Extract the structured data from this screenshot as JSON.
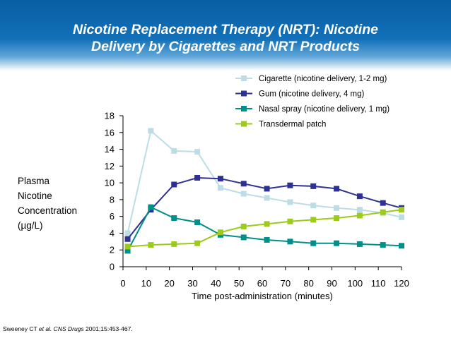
{
  "title_line1": "Nicotine Replacement Therapy (NRT): Nicotine",
  "title_line2": "Delivery by Cigarettes and NRT Products",
  "ylabel_lines": [
    "Plasma",
    "Nicotine",
    "Concentration",
    "(µg/L)"
  ],
  "citation": {
    "authors": "Sweeney CT ",
    "etal": "et al.",
    "journal": " CNS Drugs",
    "rest": " 2001;15:453-467."
  },
  "chart_data": {
    "type": "line",
    "title": "Nicotine Replacement Therapy (NRT): Nicotine Delivery by Cigarettes and NRT Products",
    "xlabel": "Time post-administration (minutes)",
    "ylabel": "Plasma Nicotine Concentration (µg/L)",
    "xlim": [
      0,
      120
    ],
    "ylim": [
      0,
      18
    ],
    "xticks": [
      0,
      10,
      20,
      30,
      40,
      50,
      60,
      70,
      80,
      90,
      100,
      110,
      120
    ],
    "yticks": [
      0,
      2,
      4,
      6,
      8,
      10,
      12,
      14,
      16,
      18
    ],
    "grid": false,
    "legend_position": "top-right",
    "series": [
      {
        "name": "Cigarette (nicotine delivery, 1-2 mg)",
        "color": "#bcdde6",
        "marker": "square",
        "x": [
          2,
          12,
          22,
          32,
          42,
          52,
          62,
          72,
          82,
          92,
          102,
          112,
          120
        ],
        "y": [
          4.0,
          16.2,
          13.8,
          13.7,
          9.4,
          8.7,
          8.2,
          7.7,
          7.3,
          7.0,
          6.8,
          6.4,
          5.9
        ]
      },
      {
        "name": "Gum (nicotine delivery, 4 mg)",
        "color": "#2e3192",
        "marker": "square",
        "x": [
          2,
          12,
          22,
          32,
          42,
          52,
          62,
          72,
          82,
          92,
          102,
          112,
          120
        ],
        "y": [
          3.3,
          6.8,
          9.8,
          10.6,
          10.5,
          9.9,
          9.3,
          9.7,
          9.6,
          9.3,
          8.4,
          7.6,
          7.0
        ]
      },
      {
        "name": "Nasal spray (nicotine delivery, 1 mg)",
        "color": "#00908a",
        "marker": "square",
        "x": [
          2,
          12,
          22,
          32,
          42,
          52,
          62,
          72,
          82,
          92,
          102,
          112,
          120
        ],
        "y": [
          1.9,
          7.1,
          5.8,
          5.3,
          3.8,
          3.5,
          3.2,
          3.0,
          2.8,
          2.8,
          2.7,
          2.6,
          2.5
        ]
      },
      {
        "name": "Transdermal patch",
        "color": "#9ccb1b",
        "marker": "square",
        "x": [
          2,
          12,
          22,
          32,
          42,
          52,
          62,
          72,
          82,
          92,
          102,
          112,
          120
        ],
        "y": [
          2.4,
          2.6,
          2.7,
          2.8,
          4.1,
          4.8,
          5.1,
          5.4,
          5.6,
          5.8,
          6.1,
          6.5,
          6.8
        ]
      }
    ]
  }
}
